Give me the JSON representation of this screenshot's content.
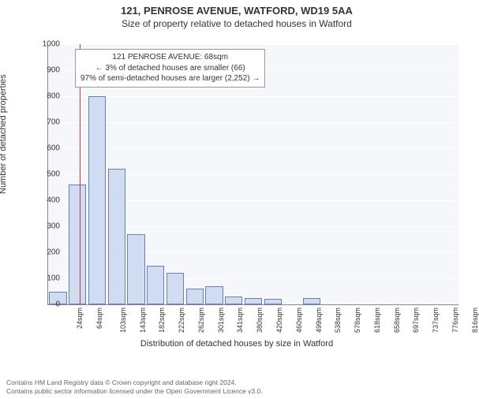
{
  "title_main": "121, PENROSE AVENUE, WATFORD, WD19 5AA",
  "title_sub": "Size of property relative to detached houses in Watford",
  "y_label": "Number of detached properties",
  "x_label": "Distribution of detached houses by size in Watford",
  "chart": {
    "type": "histogram",
    "ylim": [
      0,
      1000
    ],
    "ytick_step": 100,
    "background_color": "#f6f7fb",
    "grid_color": "#ffffff",
    "axis_color": "#888888",
    "bar_fill": "#cfdcf2",
    "bar_border": "#6b7fa8",
    "marker_color": "#cc3344",
    "marker_x_index": 1.1,
    "x_tick_labels": [
      "24sqm",
      "64sqm",
      "103sqm",
      "143sqm",
      "182sqm",
      "222sqm",
      "262sqm",
      "301sqm",
      "341sqm",
      "380sqm",
      "420sqm",
      "460sqm",
      "499sqm",
      "538sqm",
      "578sqm",
      "618sqm",
      "658sqm",
      "697sqm",
      "737sqm",
      "776sqm",
      "816sqm"
    ],
    "values": [
      48,
      460,
      800,
      520,
      270,
      150,
      120,
      60,
      70,
      30,
      25,
      20,
      0,
      25,
      0,
      0,
      0,
      0,
      0,
      0,
      0
    ]
  },
  "info_box": {
    "line1": "121 PENROSE AVENUE: 68sqm",
    "line2": "← 3% of detached houses are smaller (66)",
    "line3": "97% of semi-detached houses are larger (2,252) →"
  },
  "footer": {
    "line1": "Contains HM Land Registry data © Crown copyright and database right 2024.",
    "line2": "Contains public sector information licensed under the Open Government Licence v3.0."
  }
}
